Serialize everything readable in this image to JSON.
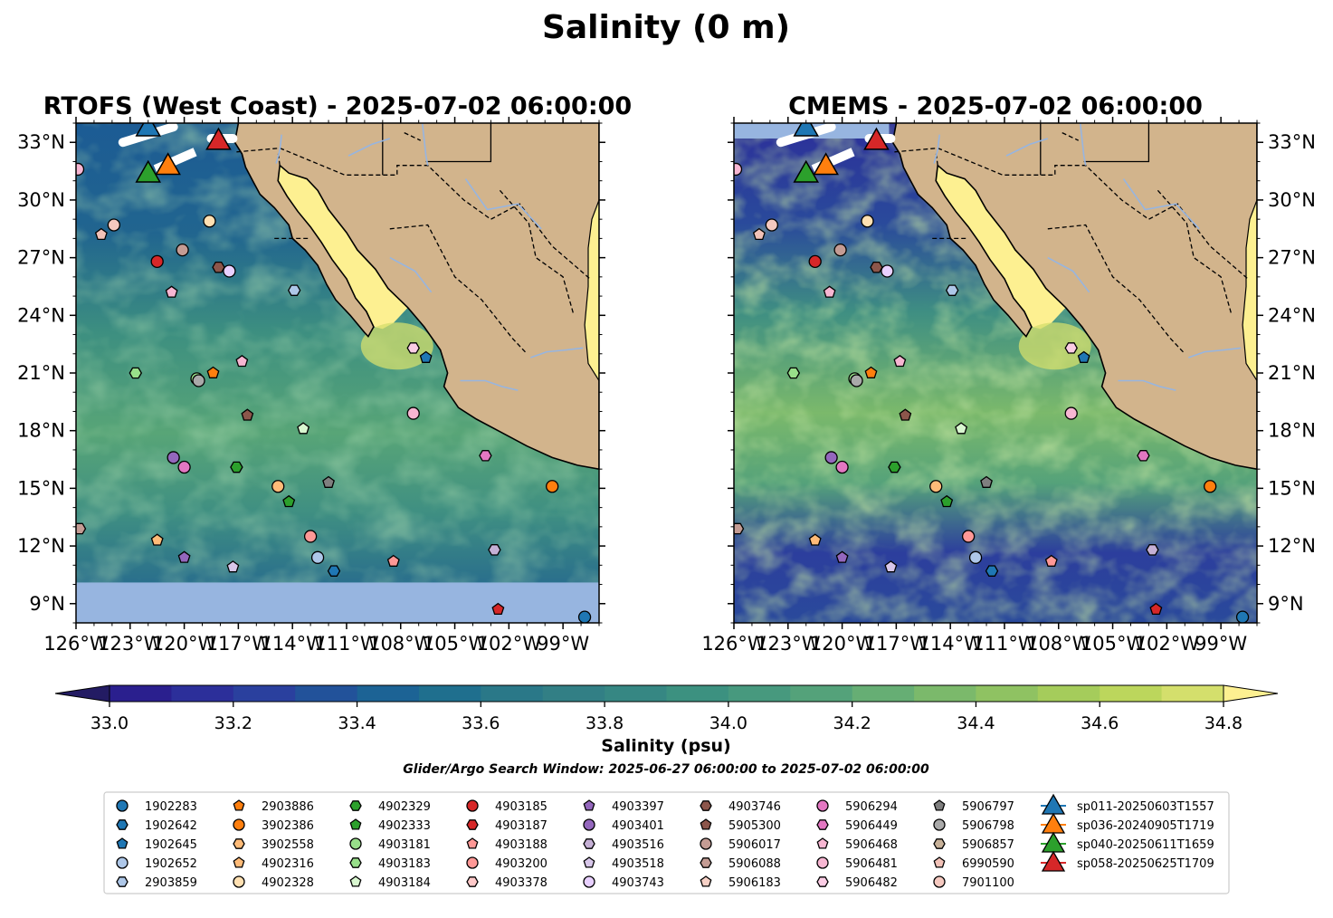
{
  "figure": {
    "suptitle": "Salinity (0 m)",
    "search_window": "Glider/Argo Search Window: 2025-06-27 06:00:00 to 2025-07-02 06:00:00"
  },
  "colors": {
    "land": "#d2b48c",
    "nodata": "#97b5e0",
    "rivers": "#97b5e0",
    "ocean_base": "#3f8f83"
  },
  "chart_data": [
    {
      "type": "heatmap",
      "title": "RTOFS (West Coast) - 2025-07-02 06:00:00",
      "xlabel": "",
      "ylabel": "",
      "xlim": [
        -126,
        -97
      ],
      "ylim": [
        8,
        34
      ],
      "xticks": [
        "126°W",
        "123°W",
        "120°W",
        "117°W",
        "114°W",
        "111°W",
        "108°W",
        "105°W",
        "102°W",
        "99°W"
      ],
      "yticks": [
        "9°N",
        "12°N",
        "15°N",
        "18°N",
        "21°N",
        "24°N",
        "27°N",
        "30°N",
        "33°N"
      ],
      "ytick_side": "left",
      "nodata_below_lat": 10.1
    },
    {
      "type": "heatmap",
      "title": "CMEMS - 2025-07-02 06:00:00",
      "xlabel": "",
      "ylabel": "",
      "xlim": [
        -126,
        -97
      ],
      "ylim": [
        8,
        34
      ],
      "xticks": [
        "126°W",
        "123°W",
        "120°W",
        "117°W",
        "114°W",
        "111°W",
        "108°W",
        "105°W",
        "102°W",
        "99°W"
      ],
      "yticks": [
        "9°N",
        "12°N",
        "15°N",
        "18°N",
        "21°N",
        "24°N",
        "27°N",
        "30°N",
        "33°N"
      ],
      "ytick_side": "right",
      "nodata_above_lat": 33.2
    }
  ],
  "colorbar": {
    "label": "Salinity (psu)",
    "min": 32.9,
    "max": 34.9,
    "step": 0.1,
    "ticks": [
      "33.0",
      "33.2",
      "33.4",
      "33.6",
      "33.8",
      "34.0",
      "34.2",
      "34.4",
      "34.6",
      "34.8"
    ],
    "colors": [
      "#231b63",
      "#2a1f8e",
      "#2c2f9a",
      "#2a409e",
      "#22529a",
      "#1c6395",
      "#1f6f8e",
      "#2a7888",
      "#327f85",
      "#368783",
      "#3c9180",
      "#47997e",
      "#54a27a",
      "#66ae74",
      "#7bb96b",
      "#8fc262",
      "#a5cc5b",
      "#bcd65c",
      "#d4df6c",
      "#fdf091"
    ]
  },
  "floats": [
    {
      "id": "1902283",
      "shape": "circle",
      "color": "#1f77b4",
      "lon": -97.8,
      "lat": 8.3
    },
    {
      "id": "1902642",
      "shape": "hexagon",
      "color": "#1f77b4",
      "lon": null,
      "lat": null
    },
    {
      "id": "1902645",
      "shape": "pentagon",
      "color": "#1f77b4",
      "lon": -106.6,
      "lat": 21.8
    },
    {
      "id": "1902652",
      "shape": "circle",
      "color": "#aec7e8",
      "lon": -112.6,
      "lat": 11.4
    },
    {
      "id": "2903859",
      "shape": "hexagon",
      "color": "#aec7e8",
      "lon": -113.9,
      "lat": 25.3
    },
    {
      "id": "2903886",
      "shape": "pentagon",
      "color": "#ff7f0e",
      "lon": null,
      "lat": null
    },
    {
      "id": "3902386",
      "shape": "circle",
      "color": "#ff7f0e",
      "lon": -99.6,
      "lat": 15.1
    },
    {
      "id": "3902558",
      "shape": "hexagon",
      "color": "#ffbb78",
      "lon": null,
      "lat": null
    },
    {
      "id": "4902316",
      "shape": "pentagon",
      "color": "#ffbb78",
      "lon": -121.5,
      "lat": 12.3
    },
    {
      "id": "4902328",
      "shape": "circle",
      "color": "#ffe0b2",
      "lon": -118.6,
      "lat": 28.9
    },
    {
      "id": "4902329",
      "shape": "hexagon",
      "color": "#2ca02c",
      "lon": -117.1,
      "lat": 16.1
    },
    {
      "id": "4902333",
      "shape": "pentagon",
      "color": "#2ca02c",
      "lon": -114.2,
      "lat": 14.3
    },
    {
      "id": "4903181",
      "shape": "circle",
      "color": "#98df8a",
      "lon": -119.3,
      "lat": 20.7
    },
    {
      "id": "4903183",
      "shape": "hexagon",
      "color": "#98df8a",
      "lon": -122.7,
      "lat": 21.0
    },
    {
      "id": "4903184",
      "shape": "pentagon",
      "color": "#d9f7d0",
      "lon": -113.4,
      "lat": 18.1
    },
    {
      "id": "4903185",
      "shape": "circle",
      "color": "#d62728",
      "lon": -121.5,
      "lat": 26.8
    },
    {
      "id": "4903187",
      "shape": "hexagon",
      "color": "#d62728",
      "lon": null,
      "lat": null
    },
    {
      "id": "4903188",
      "shape": "pentagon",
      "color": "#ff9896",
      "lon": -108.4,
      "lat": 11.2
    },
    {
      "id": "4903200",
      "shape": "circle",
      "color": "#ff9896",
      "lon": -113.0,
      "lat": 12.5
    },
    {
      "id": "4903378",
      "shape": "hexagon",
      "color": "#ffc9c9",
      "lon": null,
      "lat": null
    },
    {
      "id": "4903397",
      "shape": "pentagon",
      "color": "#9467bd",
      "lon": -120.0,
      "lat": 11.4
    },
    {
      "id": "4903401",
      "shape": "circle",
      "color": "#9467bd",
      "lon": -120.6,
      "lat": 16.6
    },
    {
      "id": "4903516",
      "shape": "hexagon",
      "color": "#c5b0d5",
      "lon": -102.8,
      "lat": 11.8
    },
    {
      "id": "4903518",
      "shape": "pentagon",
      "color": "#d8c7ea",
      "lon": -117.3,
      "lat": 10.9
    },
    {
      "id": "4903743",
      "shape": "circle",
      "color": "#e8d0ff",
      "lon": -117.5,
      "lat": 26.3
    },
    {
      "id": "4903746",
      "shape": "hexagon",
      "color": "#8c564b",
      "lon": -118.1,
      "lat": 26.5
    },
    {
      "id": "5905300",
      "shape": "pentagon",
      "color": "#8c564b",
      "lon": -116.5,
      "lat": 18.8
    },
    {
      "id": "5906017",
      "shape": "circle",
      "color": "#c49c94",
      "lon": -120.1,
      "lat": 27.4
    },
    {
      "id": "5906088",
      "shape": "hexagon",
      "color": "#c49c94",
      "lon": -125.8,
      "lat": 12.9
    },
    {
      "id": "5906183",
      "shape": "pentagon",
      "color": "#f7d1c6",
      "lon": null,
      "lat": null
    },
    {
      "id": "5906294",
      "shape": "circle",
      "color": "#e377c2",
      "lon": null,
      "lat": null
    },
    {
      "id": "5906449",
      "shape": "hexagon",
      "color": "#e377c2",
      "lon": -103.3,
      "lat": 16.7
    },
    {
      "id": "5906468",
      "shape": "pentagon",
      "color": "#f7b6d2",
      "lon": -120.7,
      "lat": 25.2
    },
    {
      "id": "5906481",
      "shape": "circle",
      "color": "#f7b6d2",
      "lon": -125.9,
      "lat": 31.6
    },
    {
      "id": "5906482",
      "shape": "hexagon",
      "color": "#fccde5",
      "lon": -107.3,
      "lat": 22.3
    },
    {
      "id": "5906797",
      "shape": "pentagon",
      "color": "#7f7f7f",
      "lon": -112.0,
      "lat": 15.3
    },
    {
      "id": "5906798",
      "shape": "circle",
      "color": "#a9a9a9",
      "lon": -119.2,
      "lat": 20.6
    },
    {
      "id": "5906857",
      "shape": "hexagon",
      "color": "#c7b199",
      "lon": null,
      "lat": null
    },
    {
      "id": "6990590",
      "shape": "pentagon",
      "color": "#f2c2b8",
      "lon": -124.6,
      "lat": 28.2
    },
    {
      "id": "7901100",
      "shape": "circle",
      "color": "#f5c9c0",
      "lon": -123.9,
      "lat": 28.7
    }
  ],
  "extra_markers": [
    {
      "shape": "circle",
      "color": "#e377c2",
      "lon": -120.0,
      "lat": 16.1
    },
    {
      "shape": "circle",
      "color": "#f7b6d2",
      "lon": -107.3,
      "lat": 18.9
    },
    {
      "shape": "pentagon",
      "color": "#d62728",
      "lon": -102.6,
      "lat": 8.7
    },
    {
      "shape": "hexagon",
      "color": "#1f77b4",
      "lon": -111.7,
      "lat": 10.7
    },
    {
      "shape": "pentagon",
      "color": "#ff7f0e",
      "lon": -118.4,
      "lat": 21.0
    },
    {
      "shape": "circle",
      "color": "#ffbb78",
      "lon": -114.8,
      "lat": 15.1
    },
    {
      "shape": "pentagon",
      "color": "#f7b6d2",
      "lon": -116.8,
      "lat": 21.6
    }
  ],
  "gliders": [
    {
      "id": "sp011-20250603T1557",
      "color": "#1f77b4",
      "lon": -122.0,
      "lat": 33.8
    },
    {
      "id": "sp036-20240905T1719",
      "color": "#ff7f0e",
      "lon": -120.9,
      "lat": 31.8
    },
    {
      "id": "sp040-20250611T1659",
      "color": "#2ca02c",
      "lon": -122.0,
      "lat": 31.4
    },
    {
      "id": "sp058-20250625T1709",
      "color": "#d62728",
      "lon": -118.1,
      "lat": 33.1
    }
  ]
}
